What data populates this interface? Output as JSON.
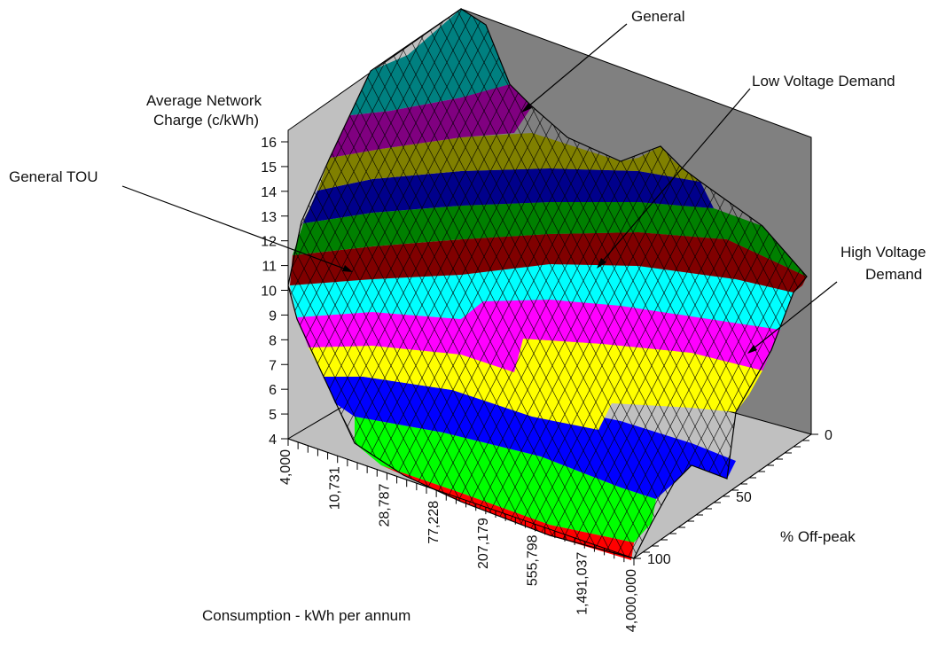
{
  "chart_data": {
    "type": "surface-3d",
    "title": "",
    "zlabel_line1": "Average Network",
    "zlabel_line2": "Charge (c/kWh)",
    "xlabel": "Consumption - kWh per annum",
    "ylabel": "% Off-peak",
    "z_ticks": [
      "4",
      "5",
      "6",
      "7",
      "8",
      "9",
      "10",
      "11",
      "12",
      "13",
      "14",
      "15",
      "16"
    ],
    "zlim": [
      4,
      16
    ],
    "x_ticks": [
      "4,000",
      "10,731",
      "28,787",
      "77,228",
      "207,179",
      "555,798",
      "1,491,037",
      "4,000,000"
    ],
    "y_ticks": [
      "0",
      "50",
      "100"
    ],
    "x_scale": "log",
    "annotations": [
      {
        "label": "General"
      },
      {
        "label": "Low Voltage Demand"
      },
      {
        "label": "General TOU"
      },
      {
        "label_line1": "High Voltage",
        "label_line2": "Demand"
      }
    ],
    "band_colors": [
      "#ff0000",
      "#00ff00",
      "#0000ff",
      "#ffff00",
      "#ff00ff",
      "#00ffff",
      "#800000",
      "#008000",
      "#00008b",
      "#808000",
      "#800080",
      "#008080"
    ],
    "surface_range": [
      4,
      16
    ]
  }
}
